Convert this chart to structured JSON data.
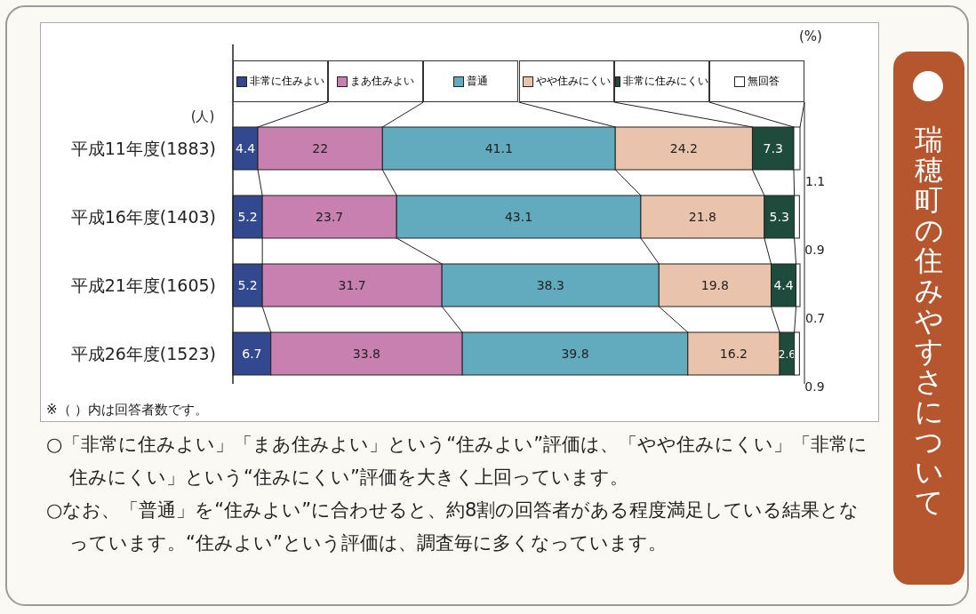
{
  "chart_data": {
    "type": "bar",
    "orientation": "horizontal",
    "stacked": true,
    "data_labels": true,
    "legend": "top",
    "title": "瑞穂町の住みやすさについて",
    "ylabel": "(人)",
    "categories": [
      "平成11年度(1883)",
      "平成16年度(1403)",
      "平成21年度(1605)",
      "平成26年度(1523)"
    ],
    "series": [
      {
        "name": "非常に住みよい",
        "color": "#33498f",
        "values": [
          4.4,
          5.2,
          5.2,
          6.7
        ]
      },
      {
        "name": "まあ住みよい",
        "color": "#c880b0",
        "values": [
          22.0,
          23.7,
          31.7,
          33.8
        ]
      },
      {
        "name": "普通",
        "color": "#62aabd",
        "values": [
          41.1,
          43.1,
          38.3,
          39.8
        ]
      },
      {
        "name": "やや住みにくい",
        "color": "#eac3ad",
        "values": [
          24.2,
          21.8,
          19.8,
          16.2
        ]
      },
      {
        "name": "非常に住みにくい",
        "color": "#1e4b3c",
        "values": [
          7.3,
          5.3,
          4.4,
          2.6
        ]
      },
      {
        "name": "無回答",
        "color": "#ffffff",
        "values": [
          1.1,
          0.9,
          0.7,
          0.9
        ]
      }
    ],
    "annotations": [
      "(%)",
      "※（ ）内は回答者数です。",
      "○「非常に住みよい」「まあ住みよい」という“住みよい”評価は、「やや住みにくい」「非常に住みにくい」という“住みにくい”評価を大きく上回っています。",
      "○なお、「普通」を“住みよい”に合わせると、約8割の回答者がある程度満足している結果となっています。“住みよい”という評価は、調査毎に多くなっています。"
    ]
  }
}
